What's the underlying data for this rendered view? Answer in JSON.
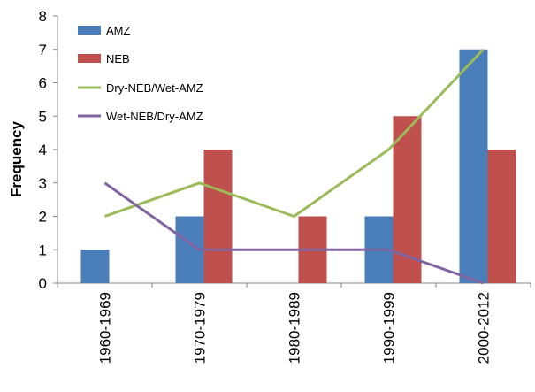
{
  "chart_data": {
    "type": "bar",
    "categories": [
      "1960-1969",
      "1970-1979",
      "1980-1989",
      "1990-1999",
      "2000-2012"
    ],
    "series": [
      {
        "name": "AMZ",
        "kind": "bar",
        "color": "#4a7ebb",
        "values": [
          1,
          2,
          0,
          2,
          7
        ]
      },
      {
        "name": "NEB",
        "kind": "bar",
        "color": "#c0504d",
        "values": [
          0,
          4,
          2,
          5,
          4
        ]
      },
      {
        "name": "Dry-NEB/Wet-AMZ",
        "kind": "line",
        "color": "#9bbb59",
        "values": [
          2,
          3,
          2,
          4,
          7
        ]
      },
      {
        "name": "Wet-NEB/Dry-AMZ",
        "kind": "line",
        "color": "#8064a2",
        "values": [
          3,
          1,
          1,
          1,
          0
        ]
      }
    ],
    "xlabel": "",
    "ylabel": "Frequency",
    "ylim": [
      0,
      8
    ],
    "yticks": [
      "0",
      "1",
      "2",
      "3",
      "4",
      "5",
      "6",
      "7",
      "8"
    ],
    "grid": false,
    "legend_position": "top-left"
  }
}
